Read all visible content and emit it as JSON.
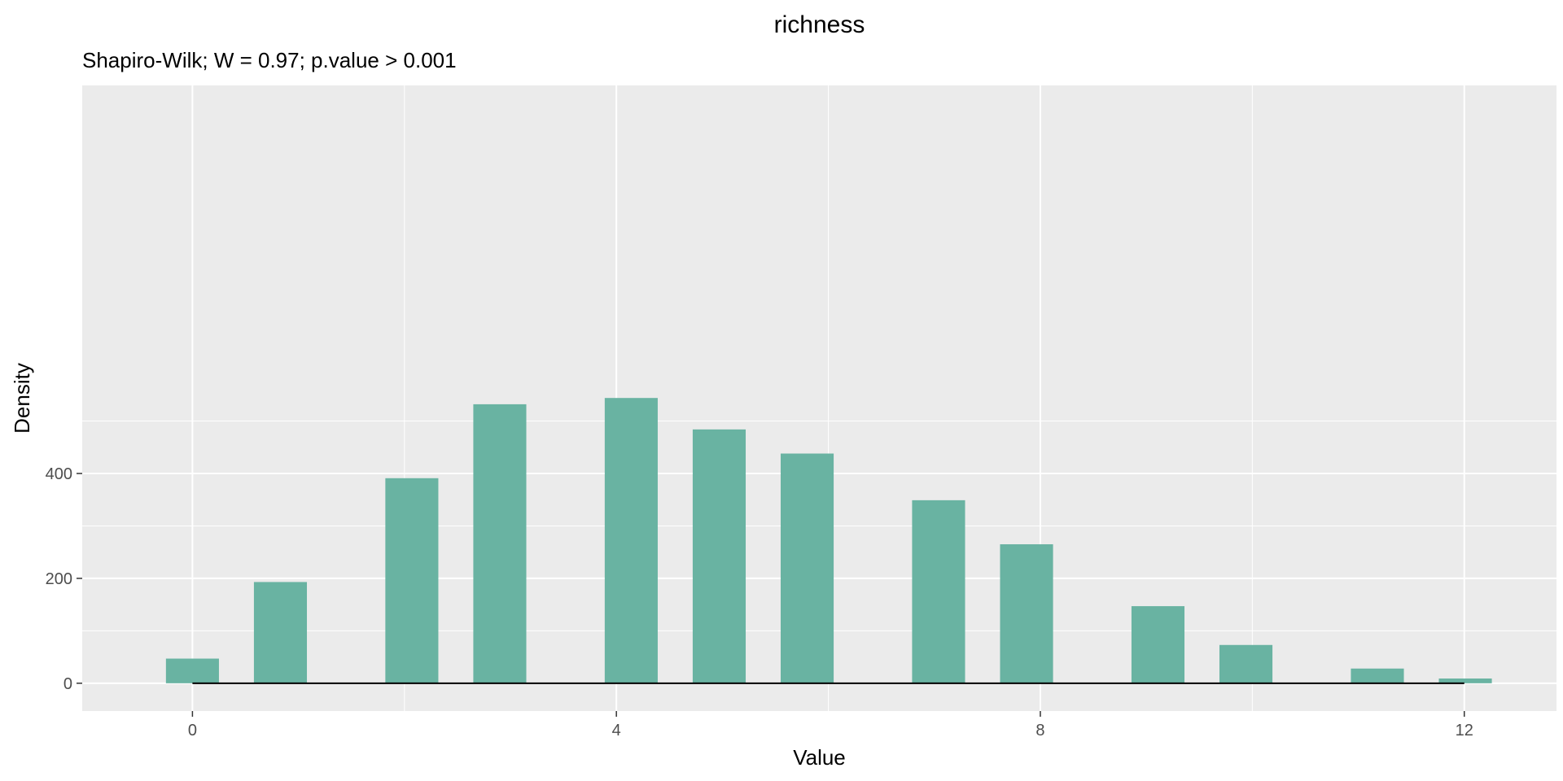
{
  "chart_data": {
    "type": "bar",
    "title": "richness",
    "subtitle": "Shapiro-Wilk; W = 0.97; p.value > 0.001",
    "xlabel": "Value",
    "ylabel": "Density",
    "xlim": [
      -1.04,
      12.87
    ],
    "ylim": [
      -53,
      1140
    ],
    "bar_width": 0.5,
    "x_ticks": [
      0,
      4,
      8,
      12
    ],
    "y_ticks": [
      0,
      200,
      400
    ],
    "x": [
      0,
      0.83,
      2.07,
      2.9,
      4.14,
      4.97,
      5.8,
      7.04,
      7.87,
      9.11,
      9.94,
      11.18,
      12.01
    ],
    "values": [
      47,
      193,
      391,
      532,
      544,
      484,
      438,
      349,
      265,
      147,
      73,
      28,
      9
    ],
    "grid": true,
    "baseline": {
      "x_start": 0,
      "x_end": 12,
      "y": 0
    },
    "colors": {
      "bar": "#69b3a2",
      "panel": "#ebebeb",
      "grid": "#ffffff",
      "baseline": "#000000"
    }
  }
}
